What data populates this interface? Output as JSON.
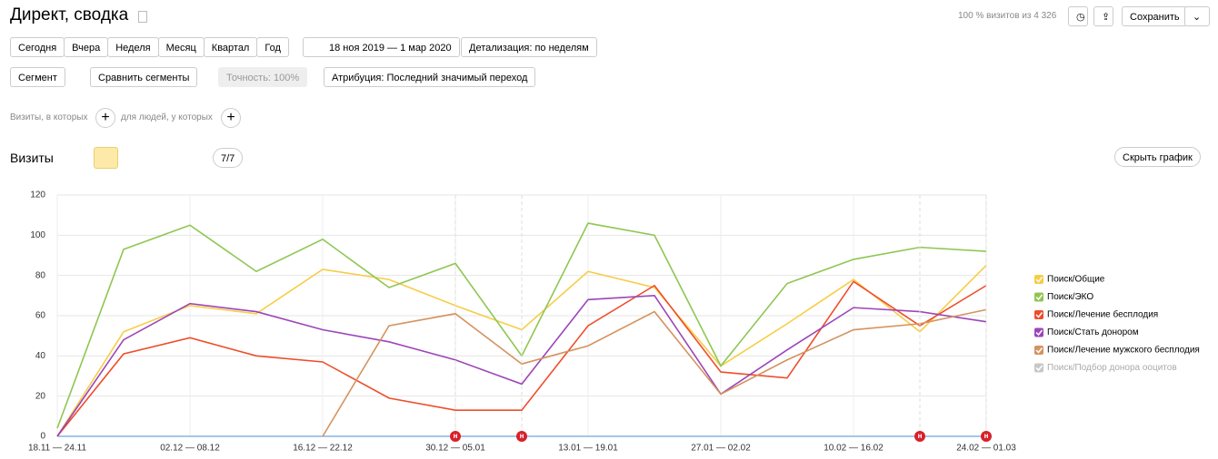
{
  "header": {
    "title": "Директ, сводка",
    "visits_info": "100 % визитов из 4 326",
    "save": "Сохранить"
  },
  "periods": [
    "Сегодня",
    "Вчера",
    "Неделя",
    "Месяц",
    "Квартал",
    "Год"
  ],
  "date_range": "18 ноя 2019 — 1 мар 2020",
  "detail": "Детализация: по неделям",
  "filters": {
    "segment": "Сегмент",
    "compare": "Сравнить сегменты",
    "accuracy": "Точность: 100%",
    "attribution": "Атрибуция: Последний значимый переход"
  },
  "conditions": {
    "visits": "Визиты, в которых",
    "people": "для людей, у которых"
  },
  "report": {
    "title": "Визиты",
    "counter": "7/7",
    "hide": "Скрыть график"
  },
  "chart_data": {
    "type": "line",
    "categories": [
      "18.11 — 24.11",
      null,
      "02.12 — 08.12",
      null,
      "16.12 — 22.12",
      null,
      "30.12 — 05.01",
      null,
      "13.01 — 19.01",
      null,
      "27.01 — 02.02",
      null,
      "10.02 — 16.02",
      null,
      "24.02 — 01.03"
    ],
    "series": [
      {
        "name": "Поиск/Общие",
        "color": "#f7cd45",
        "values": [
          0,
          52,
          65,
          61,
          83,
          78,
          65,
          53,
          82,
          74,
          35,
          56,
          78,
          52,
          85
        ]
      },
      {
        "name": "Поиск/ЭКО",
        "color": "#8fc652",
        "values": [
          4,
          93,
          105,
          82,
          98,
          74,
          86,
          40,
          106,
          100,
          35,
          76,
          88,
          94,
          92
        ]
      },
      {
        "name": "Поиск/Лечение бесплодия",
        "color": "#ef4d2b",
        "values": [
          0,
          41,
          49,
          40,
          37,
          19,
          13,
          13,
          55,
          75,
          32,
          29,
          77,
          55,
          75
        ]
      },
      {
        "name": "Поиск/Стать донором",
        "color": "#9c45b8",
        "values": [
          0,
          48,
          66,
          62,
          53,
          47,
          38,
          26,
          68,
          70,
          21,
          43,
          64,
          62,
          57
        ]
      },
      {
        "name": "Поиск/Лечение мужского бесплодия",
        "color": "#d4935f",
        "values": [
          null,
          null,
          null,
          null,
          0,
          55,
          61,
          36,
          45,
          62,
          21,
          38,
          53,
          56,
          63
        ]
      }
    ],
    "hidden_series": {
      "name": "Поиск/Подбор донора ооцитов",
      "color": "#c8c8c8"
    },
    "annotations": [
      {
        "at": 6,
        "label": "н"
      },
      {
        "at": 7,
        "label": "н"
      },
      {
        "at": 13,
        "label": "н"
      },
      {
        "at": 14,
        "label": "н"
      }
    ],
    "ylim": [
      0,
      120
    ],
    "yticks": [
      0,
      20,
      40,
      60,
      80,
      100,
      120
    ],
    "grid": true
  }
}
